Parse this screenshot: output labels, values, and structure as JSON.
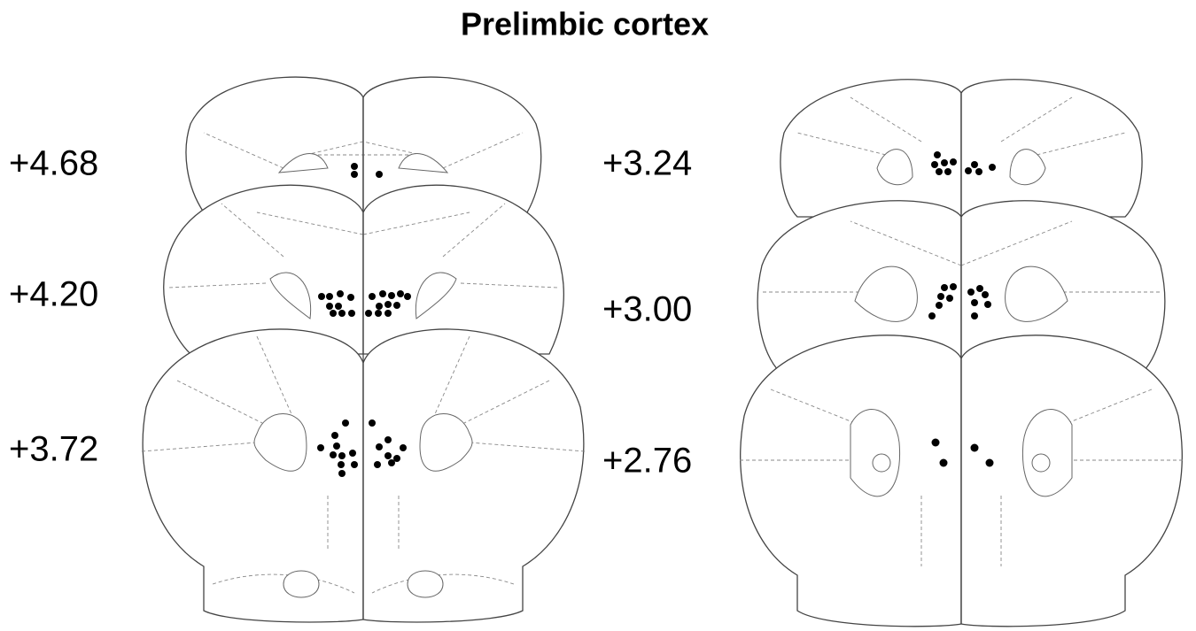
{
  "title": "Prelimbic cortex",
  "sections": [
    {
      "label": "+4.68"
    },
    {
      "label": "+4.20"
    },
    {
      "label": "+3.72"
    },
    {
      "label": "+3.24"
    },
    {
      "label": "+3.00"
    },
    {
      "label": "+2.76"
    }
  ]
}
